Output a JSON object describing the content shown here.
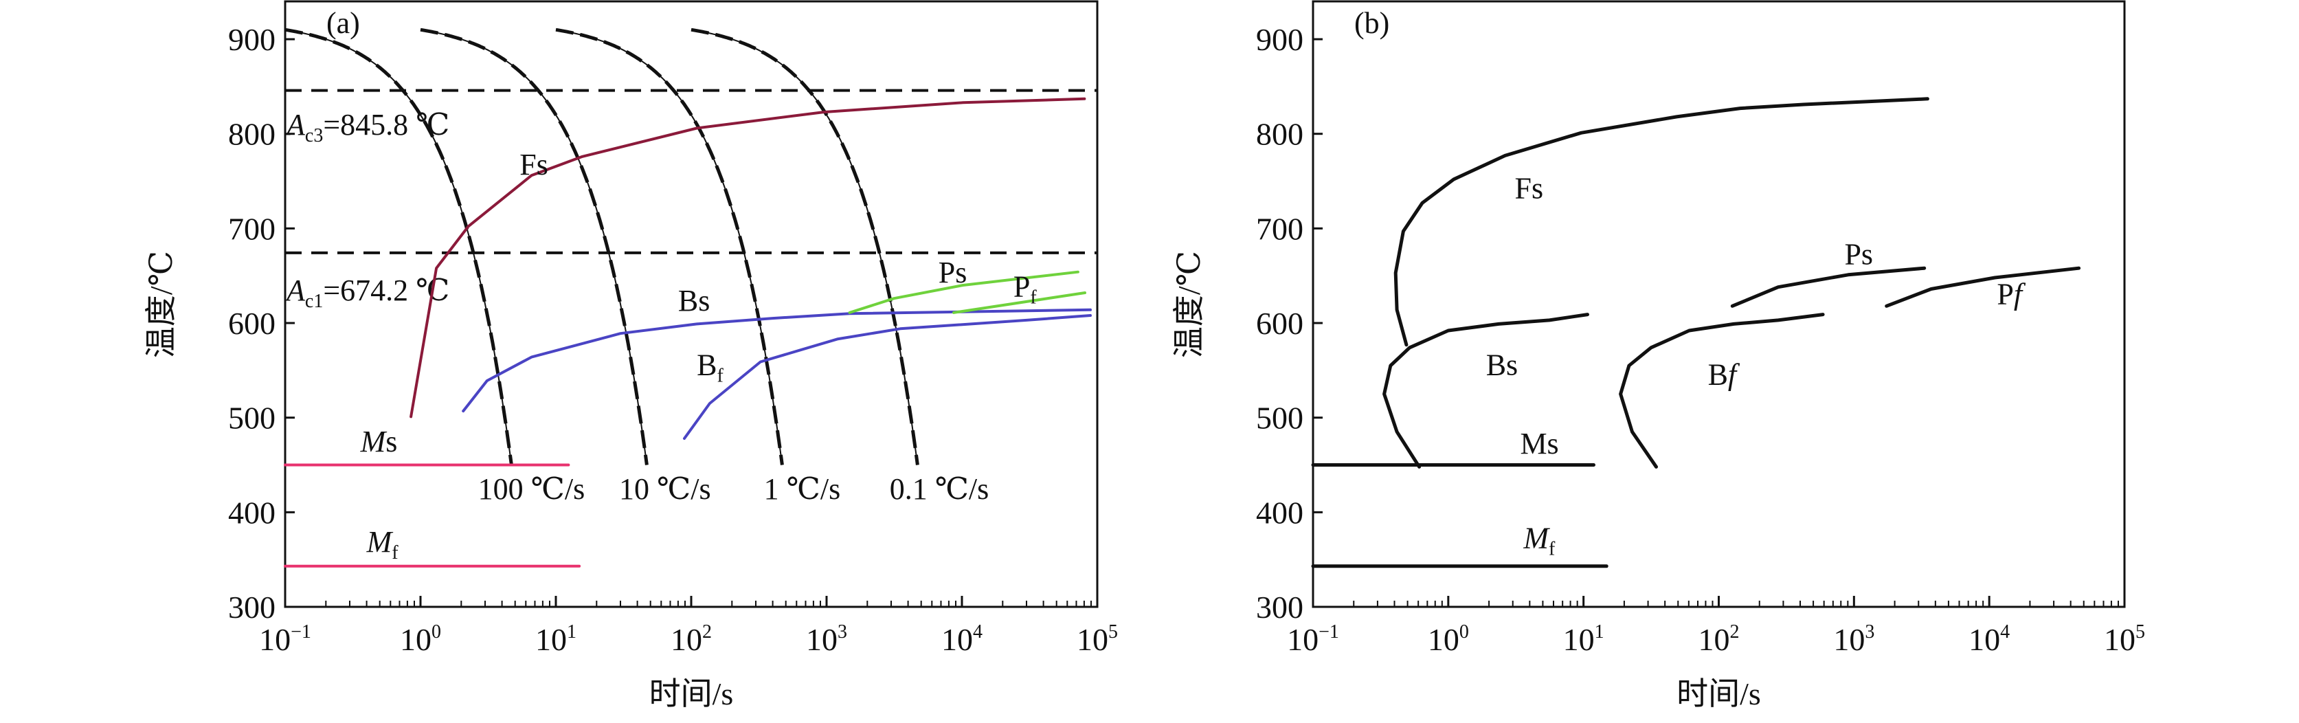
{
  "chart_data": [
    {
      "type": "line",
      "panel_label": "(a)",
      "xlabel": "时间/s",
      "ylabel": "温度/℃",
      "xscale": "log",
      "xlim": [
        0.1,
        100000
      ],
      "ylim": [
        300,
        940
      ],
      "x_ticks": [
        {
          "base": "10",
          "exp": "−1"
        },
        {
          "base": "10",
          "exp": "0"
        },
        {
          "base": "10",
          "exp": "1"
        },
        {
          "base": "10",
          "exp": "2"
        },
        {
          "base": "10",
          "exp": "3"
        },
        {
          "base": "10",
          "exp": "4"
        },
        {
          "base": "10",
          "exp": "5"
        }
      ],
      "y_ticks": [
        "300",
        "400",
        "500",
        "600",
        "700",
        "800",
        "900"
      ],
      "reference_lines": [
        {
          "name": "Ac3",
          "value": 845.8,
          "label_italic": "A",
          "label_sub": "c3",
          "label_rest": "=845.8 ℃",
          "label_T": 799
        },
        {
          "name": "Ac1",
          "value": 674.2,
          "label_italic": "A",
          "label_sub": "c1",
          "label_rest": "=674.2 ℃",
          "label_T": 624
        }
      ],
      "cooling_curves": {
        "start_temperature": 920,
        "end_temperature": 450,
        "rates": [
          {
            "rate": 100,
            "label": "100 ℃/s",
            "label_t": 6.6
          },
          {
            "rate": 10,
            "label": "10 ℃/s",
            "label_t": 64
          },
          {
            "rate": 1,
            "label": "1 ℃/s",
            "label_t": 660
          },
          {
            "rate": 0.1,
            "label": "0.1 ℃/s",
            "label_t": 6800
          }
        ],
        "label_T": 414
      },
      "series": [
        {
          "name": "Fs",
          "color": "#8b1a3a",
          "t": [
            0.85,
            1.31,
            2.25,
            6.6,
            15.7,
            110,
            950,
            10200,
            80500
          ],
          "T": [
            501,
            658,
            702,
            756,
            776,
            806,
            823,
            833,
            837
          ],
          "label_main": "Fs",
          "label_sub": "",
          "label_t": 5.4,
          "label_T": 757
        },
        {
          "name": "Bs",
          "color": "#4a44c4",
          "t": [
            2.07,
            3.1,
            6.6,
            30,
            110,
            400,
            1480,
            89000
          ],
          "T": [
            507,
            539,
            564,
            589,
            599,
            605,
            610,
            614
          ],
          "label_main": "Bs",
          "label_sub": "",
          "label_t": 80,
          "label_T": 613
        },
        {
          "name": "Bf",
          "color": "#4a44c4",
          "t": [
            89,
            137,
            325,
            1200,
            3500,
            30000,
            89000
          ],
          "T": [
            478,
            515,
            559,
            583,
            594,
            603,
            608
          ],
          "label_main": "B",
          "label_sub": "f",
          "label_t": 110,
          "label_T": 545
        },
        {
          "name": "Ps",
          "color": "#6fd23c",
          "t": [
            1480,
            3150,
            10200,
            72000
          ],
          "T": [
            611,
            626,
            640,
            654
          ],
          "label_main": "Ps",
          "label_sub": "",
          "label_t": 6700,
          "label_T": 643
        },
        {
          "name": "Pf",
          "color": "#6fd23c",
          "t": [
            8700,
            81000
          ],
          "T": [
            611,
            632
          ],
          "label_main": "P",
          "label_sub": "f",
          "label_t": 24000,
          "label_T": 628
        },
        {
          "name": "Ms",
          "color": "#e8326e",
          "t": [
            0.1,
            12.4
          ],
          "T": [
            450,
            450
          ],
          "label_main": "M",
          "label_rest": "s",
          "label_t": 0.36,
          "label_T": 464,
          "italic_main": true
        },
        {
          "name": "Mf",
          "color": "#e8326e",
          "t": [
            0.1,
            14.9
          ],
          "T": [
            343,
            343
          ],
          "label_main": "M",
          "label_sub": "f",
          "label_t": 0.4,
          "label_T": 358,
          "italic_main": true
        }
      ]
    },
    {
      "type": "line",
      "panel_label": "(b)",
      "xlabel": "时间/s",
      "ylabel": "温度/℃",
      "xscale": "log",
      "xlim": [
        0.1,
        100000
      ],
      "ylim": [
        300,
        940
      ],
      "x_ticks": [
        {
          "base": "10",
          "exp": "−1"
        },
        {
          "base": "10",
          "exp": "0"
        },
        {
          "base": "10",
          "exp": "1"
        },
        {
          "base": "10",
          "exp": "2"
        },
        {
          "base": "10",
          "exp": "3"
        },
        {
          "base": "10",
          "exp": "4"
        },
        {
          "base": "10",
          "exp": "5"
        }
      ],
      "y_ticks": [
        "300",
        "400",
        "500",
        "600",
        "700",
        "800",
        "900"
      ],
      "series": [
        {
          "name": "Fs",
          "color": "#111111",
          "t": [
            0.49,
            0.417,
            0.408,
            0.465,
            0.643,
            1.1,
            2.63,
            9.6,
            48.8,
            144,
            425,
            3500
          ],
          "T": [
            577,
            614,
            653,
            697,
            727,
            752,
            777,
            801,
            818,
            827,
            831,
            837
          ],
          "label_main": "Fs",
          "label_sub": "",
          "label_t": 3.1,
          "label_T": 732
        },
        {
          "name": "Bs",
          "color": "#111111",
          "t": [
            0.61,
            0.417,
            0.336,
            0.374,
            0.518,
            1.0,
            2.36,
            5.6,
            10.7
          ],
          "T": [
            448,
            485,
            525,
            555,
            574,
            592,
            599,
            603,
            609
          ],
          "label_main": "Bs",
          "label_sub": "",
          "label_t": 1.9,
          "label_T": 545
        },
        {
          "name": "Bf",
          "color": "#111111",
          "t": [
            34.5,
            22.9,
            18.8,
            21.7,
            31.6,
            60.5,
            129,
            275,
            589
          ],
          "T": [
            448,
            485,
            525,
            555,
            574,
            592,
            599,
            603,
            609
          ],
          "label_main": "B",
          "label_italic": "f",
          "label_t": 83,
          "label_T": 535
        },
        {
          "name": "Ps",
          "color": "#111111",
          "t": [
            126,
            275,
            906,
            3310
          ],
          "T": [
            618,
            638,
            651,
            658
          ],
          "label_main": "Ps",
          "label_sub": "",
          "label_t": 850,
          "label_T": 662
        },
        {
          "name": "Pf",
          "color": "#111111",
          "t": [
            1740,
            3720,
            11000,
            46000
          ],
          "T": [
            618,
            636,
            648,
            658
          ],
          "label_main": "P",
          "label_italic": "f",
          "label_t": 11400,
          "label_T": 620
        },
        {
          "name": "Ms",
          "color": "#111111",
          "t": [
            0.1,
            11.9
          ],
          "T": [
            450,
            450
          ],
          "label_main": "Ms",
          "label_sub": "",
          "label_t": 3.4,
          "label_T": 462
        },
        {
          "name": "Mf",
          "color": "#111111",
          "t": [
            0.1,
            14.8
          ],
          "T": [
            343,
            343
          ],
          "label_main": "M",
          "label_sub": "f",
          "label_t": 3.6,
          "label_T": 362,
          "italic_main": true
        }
      ]
    }
  ]
}
